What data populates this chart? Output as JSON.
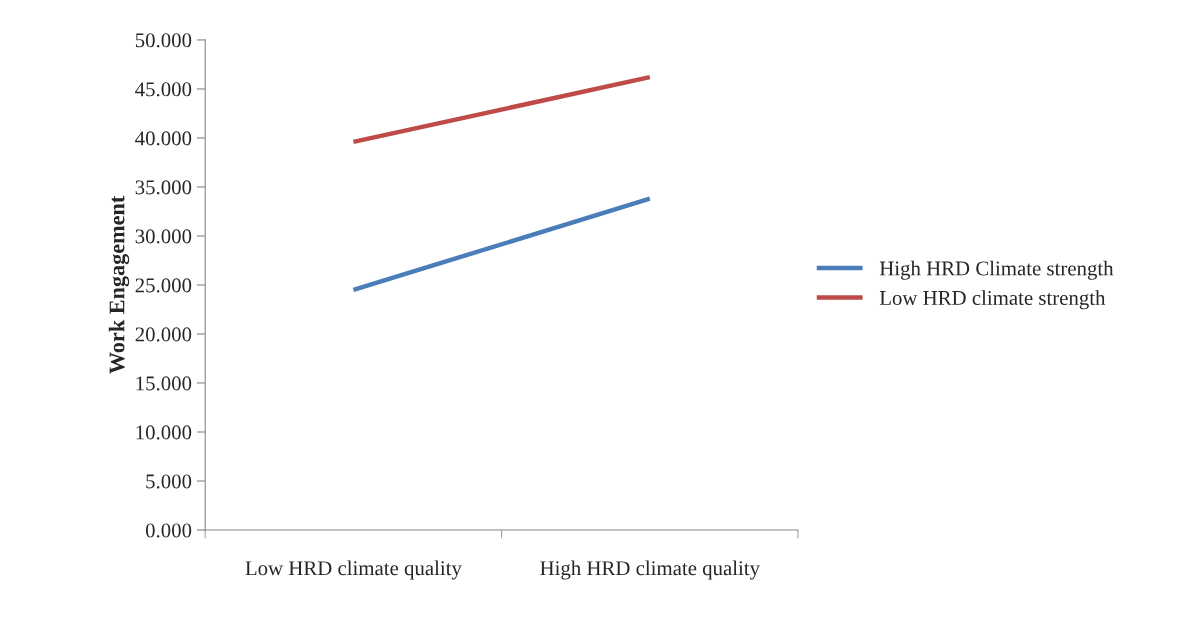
{
  "chart_data": {
    "type": "line",
    "ylabel": "Work Engagement",
    "categories": [
      "Low HRD climate quality",
      "High HRD climate quality"
    ],
    "series": [
      {
        "name": "High HRD Climate strength",
        "color": "#4a7ebb",
        "values": [
          24.5,
          33.8
        ]
      },
      {
        "name": "Low HRD climate strength",
        "color": "#be4b48",
        "values": [
          39.6,
          46.2
        ]
      }
    ],
    "ylim": [
      0,
      50
    ],
    "yticks": [
      {
        "value": 0,
        "label": "0.000"
      },
      {
        "value": 5,
        "label": "5.000"
      },
      {
        "value": 10,
        "label": "10.000"
      },
      {
        "value": 15,
        "label": "15.000"
      },
      {
        "value": 20,
        "label": "20.000"
      },
      {
        "value": 25,
        "label": "25.000"
      },
      {
        "value": 30,
        "label": "30.000"
      },
      {
        "value": 35,
        "label": "35.000"
      },
      {
        "value": 40,
        "label": "40.000"
      },
      {
        "value": 45,
        "label": "45.000"
      },
      {
        "value": 50,
        "label": "50.000"
      }
    ],
    "grid": false,
    "legend": "right",
    "marker": "none",
    "line_style": "solid"
  }
}
